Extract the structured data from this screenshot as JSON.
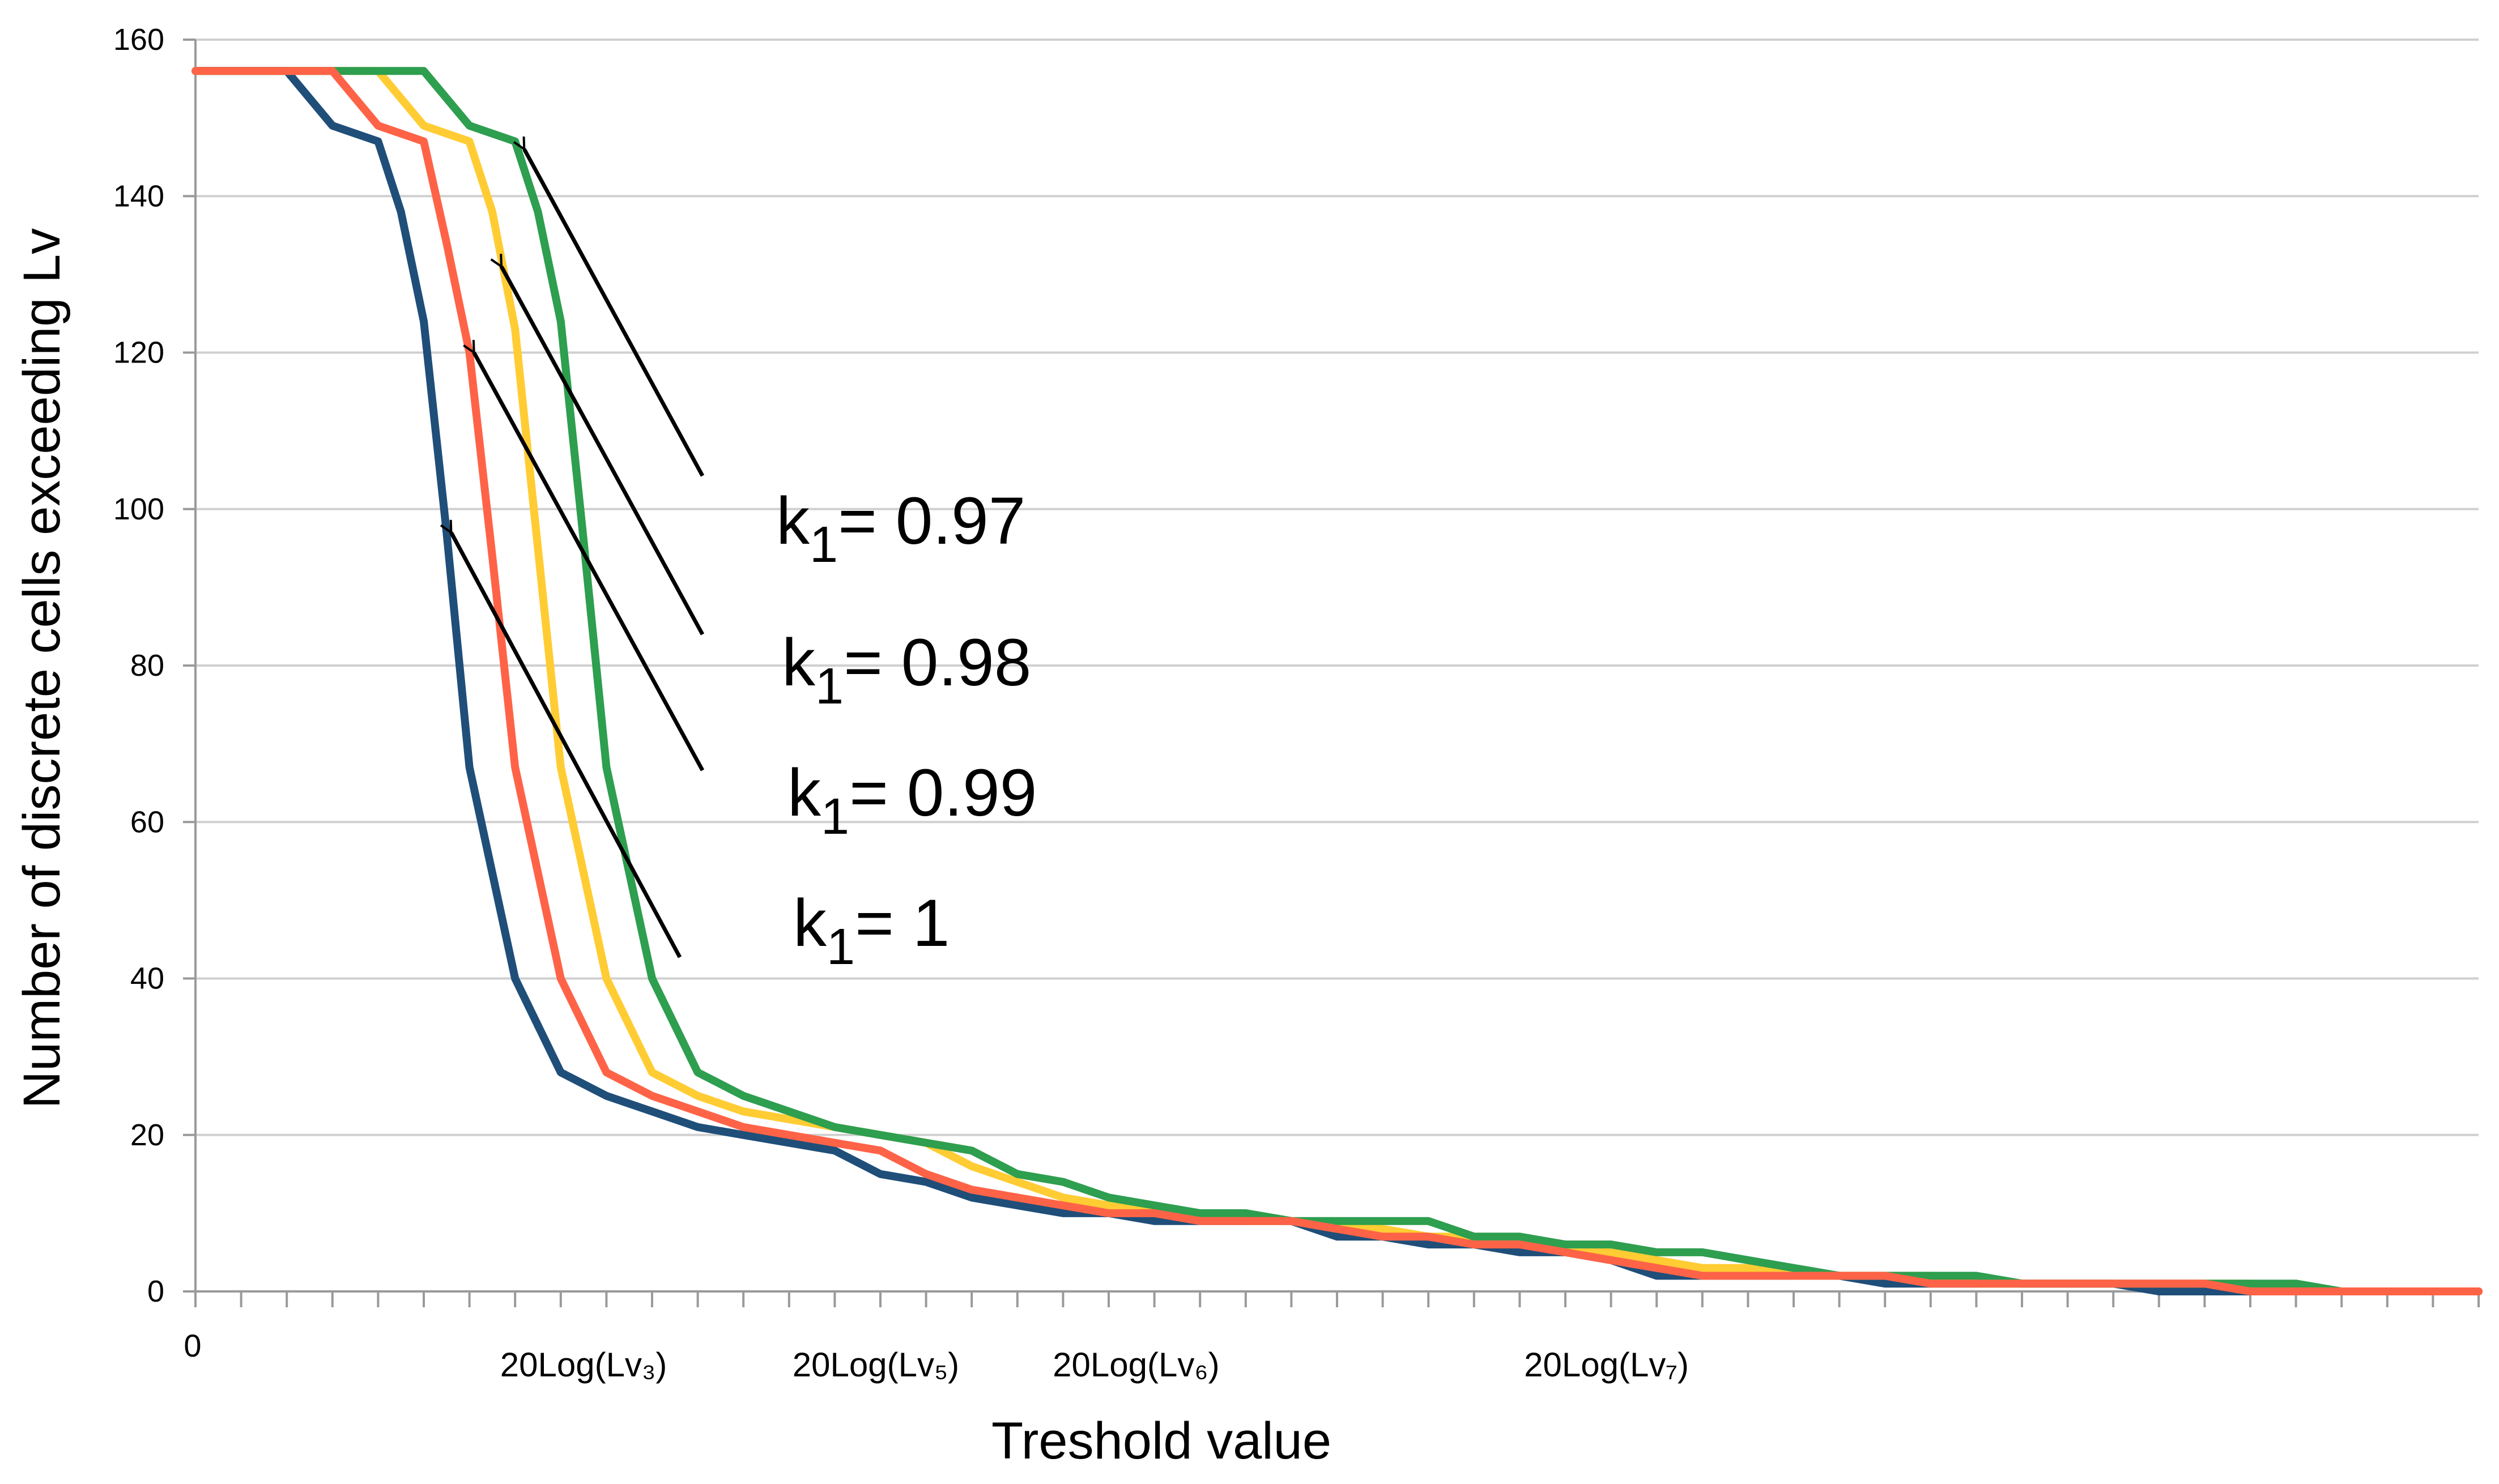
{
  "chart_data": {
    "type": "line",
    "title": "",
    "xlabel": "Treshold value",
    "ylabel": "Number of discrete cells exceeding Lv",
    "ylim": [
      0,
      160
    ],
    "xlim": [
      0,
      50
    ],
    "y_ticks": [
      "0",
      "20",
      "40",
      "60",
      "80",
      "100",
      "120",
      "140",
      "160"
    ],
    "x_origin_label": "0",
    "x_tick_labels": [
      {
        "text": "20Log(Lv₃)",
        "x": 8.5
      },
      {
        "text": "20Log(Lv₅)",
        "x": 14.9
      },
      {
        "text": "20Log(Lv₆)",
        "x": 20.6
      },
      {
        "text": "20Log(Lv₇)",
        "x": 30.9
      }
    ],
    "grid": true,
    "colors": {
      "k1_1": "#1f4e79",
      "k1_099": "#ff6347",
      "k1_098": "#ffcc33",
      "k1_097": "#2e9e4f",
      "gridline": "#d0d0d0",
      "axis": "#9a9a9a",
      "arrow": "#000000",
      "text": "#000000"
    },
    "series": [
      {
        "id": "k1_1",
        "name": "k1 = 1",
        "x": [
          0,
          2,
          3,
          4,
          4.5,
          5,
          5.5,
          6,
          7,
          8,
          9,
          10,
          11,
          12,
          13,
          14,
          15,
          16,
          17,
          18,
          19,
          20,
          21,
          22,
          23,
          24,
          25,
          26,
          27,
          28,
          29,
          30,
          31,
          32,
          33,
          34,
          35,
          36,
          37,
          38,
          39,
          40,
          41,
          42,
          43,
          44,
          45,
          50
        ],
        "y": [
          156,
          156,
          149,
          147,
          138,
          124,
          97,
          67,
          40,
          28,
          25,
          23,
          21,
          20,
          19,
          18,
          15,
          14,
          12,
          11,
          10,
          10,
          9,
          9,
          9,
          9,
          7,
          7,
          6,
          6,
          5,
          5,
          4,
          2,
          2,
          2,
          2,
          2,
          1,
          1,
          1,
          1,
          1,
          1,
          0,
          0,
          0,
          0
        ]
      },
      {
        "id": "k1_099",
        "name": "k1 = 0.99",
        "x": [
          0,
          3,
          4,
          5,
          5.5,
          6,
          6.5,
          7,
          8,
          9,
          10,
          11,
          12,
          13,
          14,
          15,
          16,
          17,
          18,
          19,
          20,
          21,
          22,
          23,
          24,
          25,
          26,
          27,
          28,
          29,
          30,
          31,
          32,
          33,
          34,
          35,
          36,
          37,
          38,
          39,
          40,
          41,
          42,
          43,
          44,
          45,
          46,
          50
        ],
        "y": [
          156,
          156,
          149,
          147,
          134,
          120,
          94,
          67,
          40,
          28,
          25,
          23,
          21,
          20,
          19,
          18,
          15,
          13,
          12,
          11,
          10,
          10,
          9,
          9,
          9,
          8,
          7,
          7,
          6,
          6,
          5,
          4,
          3,
          2,
          2,
          2,
          2,
          2,
          1,
          1,
          1,
          1,
          1,
          1,
          1,
          0,
          0,
          0
        ]
      },
      {
        "id": "k1_098",
        "name": "k1 = 0.98",
        "x": [
          0,
          4,
          5,
          6,
          6.5,
          7,
          7.5,
          8,
          9,
          10,
          11,
          12,
          13,
          14,
          15,
          16,
          17,
          18,
          19,
          20,
          21,
          22,
          23,
          24,
          25,
          26,
          27,
          28,
          29,
          30,
          31,
          32,
          33,
          34,
          35,
          36,
          37,
          38,
          39,
          40,
          41,
          42,
          43,
          44,
          45,
          46,
          50
        ],
        "y": [
          156,
          156,
          149,
          147,
          138,
          123,
          95,
          67,
          40,
          28,
          25,
          23,
          22,
          21,
          20,
          19,
          16,
          14,
          12,
          11,
          10,
          10,
          9,
          9,
          8,
          8,
          7,
          7,
          6,
          6,
          5,
          4,
          3,
          3,
          2,
          2,
          2,
          2,
          1,
          1,
          1,
          1,
          1,
          1,
          1,
          0,
          0
        ]
      },
      {
        "id": "k1_097",
        "name": "k1 = 0.97",
        "x": [
          0,
          5,
          6,
          7,
          7.5,
          8,
          8.5,
          9,
          10,
          11,
          12,
          13,
          14,
          15,
          16,
          17,
          18,
          19,
          20,
          21,
          22,
          23,
          24,
          25,
          26,
          27,
          28,
          29,
          30,
          31,
          32,
          33,
          34,
          35,
          36,
          37,
          38,
          39,
          40,
          41,
          42,
          43,
          44,
          45,
          46,
          47,
          50
        ],
        "y": [
          156,
          156,
          149,
          147,
          138,
          124,
          96,
          67,
          40,
          28,
          25,
          23,
          21,
          20,
          19,
          18,
          15,
          14,
          12,
          11,
          10,
          10,
          9,
          9,
          9,
          9,
          7,
          7,
          6,
          6,
          5,
          5,
          4,
          3,
          2,
          2,
          2,
          2,
          1,
          1,
          1,
          1,
          1,
          1,
          1,
          0,
          0
        ]
      }
    ],
    "annotations": [
      {
        "id": "k1_097",
        "base": "k",
        "sub": "1",
        "rest": "= 0.97",
        "arrow_to": {
          "x": 7.2,
          "y": 146
        }
      },
      {
        "id": "k1_098",
        "base": "k",
        "sub": "1",
        "rest": "= 0.98",
        "arrow_to": {
          "x": 6.7,
          "y": 131
        }
      },
      {
        "id": "k1_099",
        "base": "k",
        "sub": "1",
        "rest": "= 0.99",
        "arrow_to": {
          "x": 6.1,
          "y": 120
        }
      },
      {
        "id": "k1_1",
        "base": "k",
        "sub": "1",
        "rest": "= 1",
        "arrow_to": {
          "x": 5.6,
          "y": 97
        }
      }
    ]
  }
}
